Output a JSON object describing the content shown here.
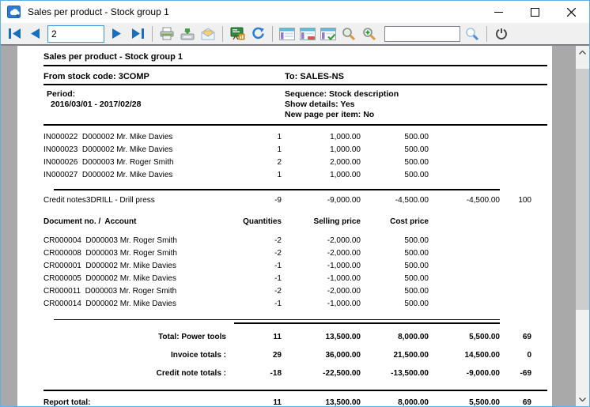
{
  "window": {
    "title": "Sales per product - Stock group 1"
  },
  "toolbar": {
    "page_value": "2",
    "search_value": ""
  },
  "colors": {
    "nav_arrow_blue": "#1a6fbd",
    "window_border_blue": "#5fb0e6",
    "toolbar_bg": "#f0f0f0",
    "page_margin_gray": "#a9a9a9",
    "report_text": "#000000"
  },
  "report": {
    "title": "Sales per product - Stock group 1",
    "from": "From stock code: 3COMP",
    "to": "To: SALES-NS",
    "period_label": "Period:",
    "period_value": "2016/03/01   -   2017/02/28",
    "sequence": "Sequence:  Stock description",
    "show_details": "Show details: Yes",
    "new_page_per_item": "New page per item: No",
    "header_row": {
      "desc": "Document no. /  Account",
      "qty": "Quantities",
      "selling": "Selling price",
      "cost": "Cost price",
      "col4": "",
      "col5": ""
    },
    "invoice_rows": [
      {
        "desc": "IN000022  D000002 Mr. Mike Davies",
        "qty": "1",
        "selling": "1,000.00",
        "cost": "500.00",
        "col4": "",
        "col5": ""
      },
      {
        "desc": "IN000023  D000002 Mr. Mike Davies",
        "qty": "1",
        "selling": "1,000.00",
        "cost": "500.00",
        "col4": "",
        "col5": ""
      },
      {
        "desc": "IN000026  D000003 Mr. Roger Smith",
        "qty": "2",
        "selling": "2,000.00",
        "cost": "500.00",
        "col4": "",
        "col5": ""
      },
      {
        "desc": "IN000027  D000002 Mr. Mike Davies",
        "qty": "1",
        "selling": "1,000.00",
        "cost": "500.00",
        "col4": "",
        "col5": ""
      }
    ],
    "credit_summary": {
      "desc": "Credit notes3DRILL - Drill press",
      "qty": "-9",
      "selling": "-9,000.00",
      "cost": "-4,500.00",
      "col4": "-4,500.00",
      "col5": "100"
    },
    "credit_rows": [
      {
        "desc": "CR000004  D000003 Mr. Roger Smith",
        "qty": "-2",
        "selling": "-2,000.00",
        "cost": "500.00",
        "col4": "",
        "col5": ""
      },
      {
        "desc": "CR000008  D000003 Mr. Roger Smith",
        "qty": "-2",
        "selling": "-2,000.00",
        "cost": "500.00",
        "col4": "",
        "col5": ""
      },
      {
        "desc": "CR000001  D000002 Mr. Mike Davies",
        "qty": "-1",
        "selling": "-1,000.00",
        "cost": "500.00",
        "col4": "",
        "col5": ""
      },
      {
        "desc": "CR000005  D000002 Mr. Mike Davies",
        "qty": "-1",
        "selling": "-1,000.00",
        "cost": "500.00",
        "col4": "",
        "col5": ""
      },
      {
        "desc": "CR000011  D000003 Mr. Roger Smith",
        "qty": "-2",
        "selling": "-2,000.00",
        "cost": "500.00",
        "col4": "",
        "col5": ""
      },
      {
        "desc": "CR000014  D000002 Mr. Mike Davies",
        "qty": "-1",
        "selling": "-1,000.00",
        "cost": "500.00",
        "col4": "",
        "col5": ""
      }
    ],
    "totals": [
      {
        "desc": "Total: Power tools",
        "qty": "11",
        "selling": "13,500.00",
        "cost": "8,000.00",
        "col4": "5,500.00",
        "col5": "69"
      },
      {
        "desc": "Invoice totals :",
        "qty": "29",
        "selling": "36,000.00",
        "cost": "21,500.00",
        "col4": "14,500.00",
        "col5": "0"
      },
      {
        "desc": "Credit note totals :",
        "qty": "-18",
        "selling": "-22,500.00",
        "cost": "-13,500.00",
        "col4": "-9,000.00",
        "col5": "-69"
      }
    ],
    "report_total": {
      "desc": "Report total:",
      "qty": "11",
      "selling": "13,500.00",
      "cost": "8,000.00",
      "col4": "5,500.00",
      "col5": "69"
    }
  }
}
